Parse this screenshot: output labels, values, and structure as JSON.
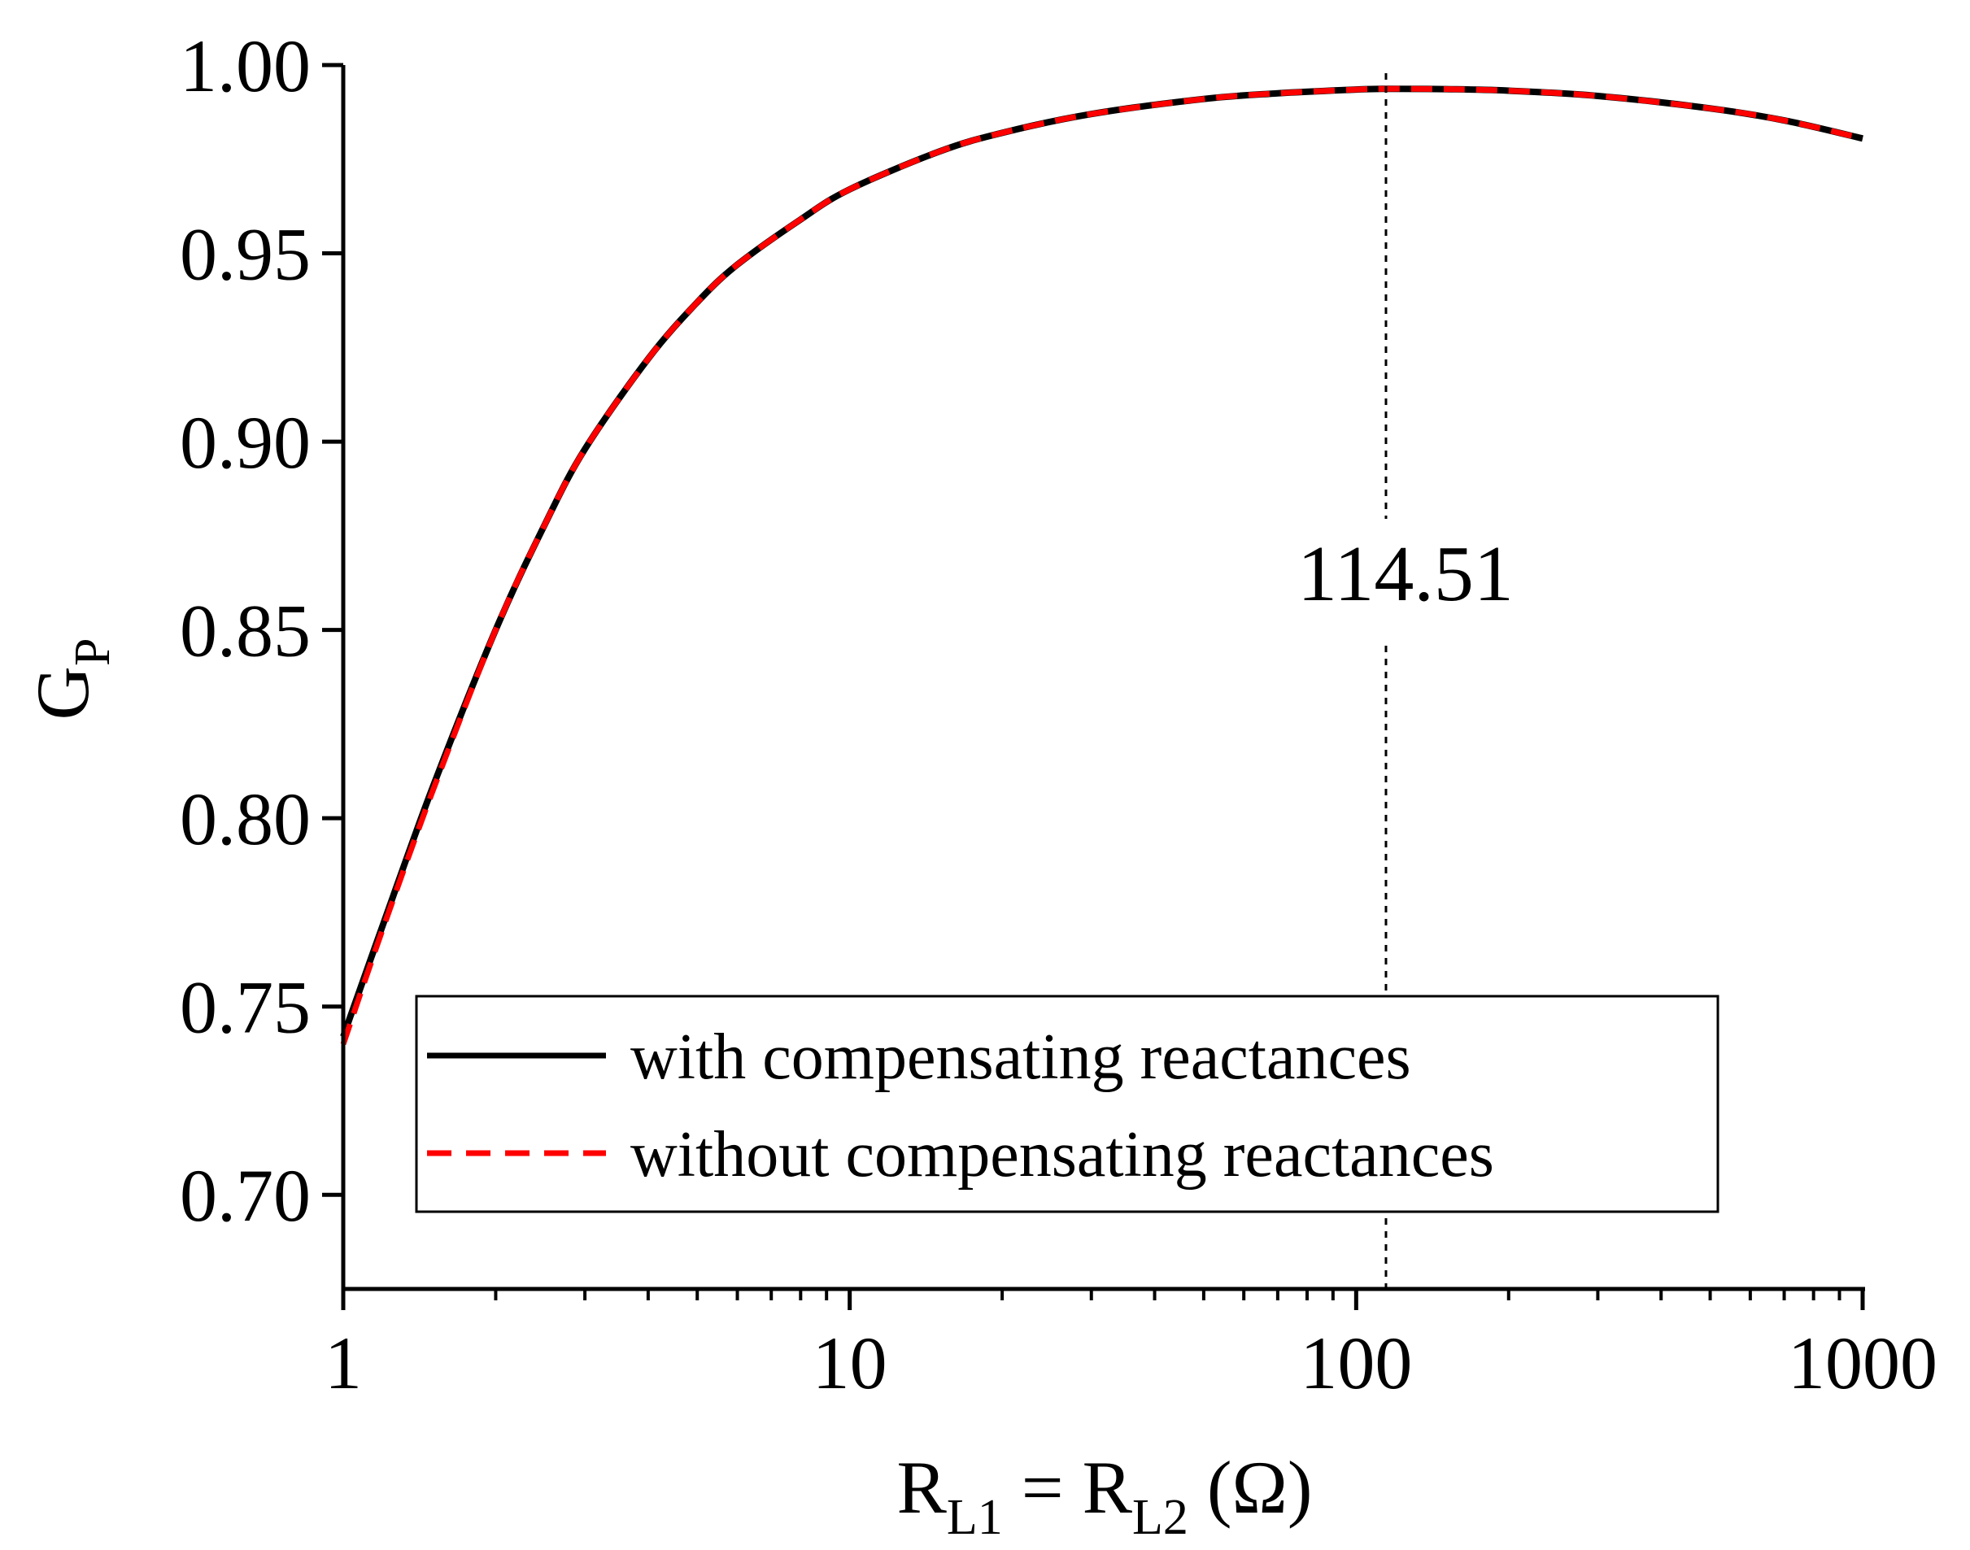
{
  "chart_data": {
    "type": "line",
    "xscale": "log",
    "xlim": [
      1,
      1000
    ],
    "ylim": [
      0.675,
      1.0
    ],
    "xticks": [
      {
        "value": 1,
        "label": "1"
      },
      {
        "value": 10,
        "label": "10"
      },
      {
        "value": 100,
        "label": "100"
      },
      {
        "value": 1000,
        "label": "1000"
      }
    ],
    "yticks": [
      {
        "value": 0.7,
        "label": "0.70"
      },
      {
        "value": 0.75,
        "label": "0.75"
      },
      {
        "value": 0.8,
        "label": "0.80"
      },
      {
        "value": 0.85,
        "label": "0.85"
      },
      {
        "value": 0.9,
        "label": "0.90"
      },
      {
        "value": 0.95,
        "label": "0.95"
      },
      {
        "value": 1.0,
        "label": "1.00"
      }
    ],
    "xlabel": {
      "main": "R",
      "sub1": "L1",
      "mid": " = R",
      "sub2": "L2",
      "tail": " (Ω)"
    },
    "ylabel": {
      "main": "G",
      "sub": "P"
    },
    "series": [
      {
        "name": "with compensating reactances",
        "color": "#000000",
        "style": "solid",
        "x": [
          1,
          1.2,
          1.5,
          2,
          2.5,
          3,
          4,
          5,
          6,
          8,
          10,
          15,
          20,
          30,
          50,
          70,
          100,
          114.51,
          150,
          200,
          300,
          500,
          700,
          1000
        ],
        "y": [
          0.742,
          0.772,
          0.808,
          0.85,
          0.878,
          0.898,
          0.922,
          0.937,
          0.947,
          0.959,
          0.967,
          0.977,
          0.982,
          0.987,
          0.991,
          0.9925,
          0.9935,
          0.9937,
          0.9936,
          0.9932,
          0.9918,
          0.9885,
          0.9853,
          0.9805
        ]
      },
      {
        "name": "without compensating reactances",
        "color": "#ff0000",
        "style": "dashed",
        "x": [
          1,
          1.2,
          1.5,
          2,
          2.5,
          3,
          4,
          5,
          6,
          8,
          10,
          15,
          20,
          30,
          50,
          70,
          100,
          114.51,
          150,
          200,
          300,
          500,
          700,
          1000
        ],
        "y": [
          0.74,
          0.771,
          0.807,
          0.85,
          0.878,
          0.898,
          0.922,
          0.937,
          0.947,
          0.959,
          0.967,
          0.977,
          0.982,
          0.987,
          0.991,
          0.9925,
          0.9935,
          0.9937,
          0.9936,
          0.9932,
          0.9918,
          0.9885,
          0.9853,
          0.9805
        ]
      }
    ],
    "vline": {
      "x": 114.51,
      "label": "114.51",
      "style": "dotted"
    },
    "legend": {
      "placement": "bottom-center"
    }
  }
}
